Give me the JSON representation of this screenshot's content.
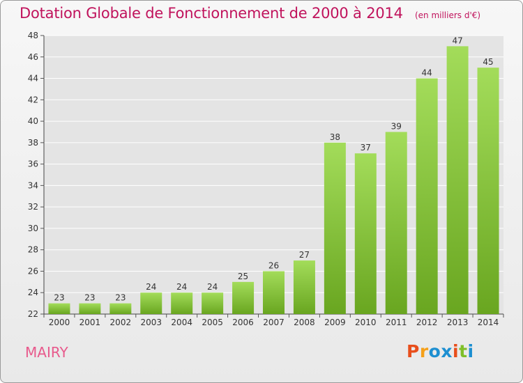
{
  "header": {
    "title": "Dotation Globale de Fonctionnement de 2000 à 2014",
    "subtitle": "(en milliers d'€)"
  },
  "footer": {
    "commune": "MAIRY",
    "logo_text": "Proxiti"
  },
  "colors": {
    "title": "#c0135c",
    "commune": "#e85a8c",
    "bar_light": "#a3dc5a",
    "bar_dark": "#69a620",
    "logo": [
      "#e84e1b",
      "#f5a01a",
      "#1d8fd1",
      "#1d8fd1",
      "#e84e1b",
      "#7fbf2a",
      "#1d8fd1"
    ]
  },
  "chart_data": {
    "type": "bar",
    "title": "Dotation Globale de Fonctionnement de 2000 à 2014",
    "subtitle": "(en milliers d'€)",
    "categories": [
      "2000",
      "2001",
      "2002",
      "2003",
      "2004",
      "2005",
      "2006",
      "2007",
      "2008",
      "2009",
      "2010",
      "2011",
      "2012",
      "2013",
      "2014"
    ],
    "values": [
      23,
      23,
      23,
      24,
      24,
      24,
      25,
      26,
      27,
      38,
      37,
      39,
      44,
      47,
      45
    ],
    "ylim": [
      22,
      48
    ],
    "yticks": [
      22,
      24,
      26,
      28,
      30,
      32,
      34,
      36,
      38,
      40,
      42,
      44,
      46,
      48
    ],
    "grid": true,
    "xlabel": "",
    "ylabel": ""
  }
}
